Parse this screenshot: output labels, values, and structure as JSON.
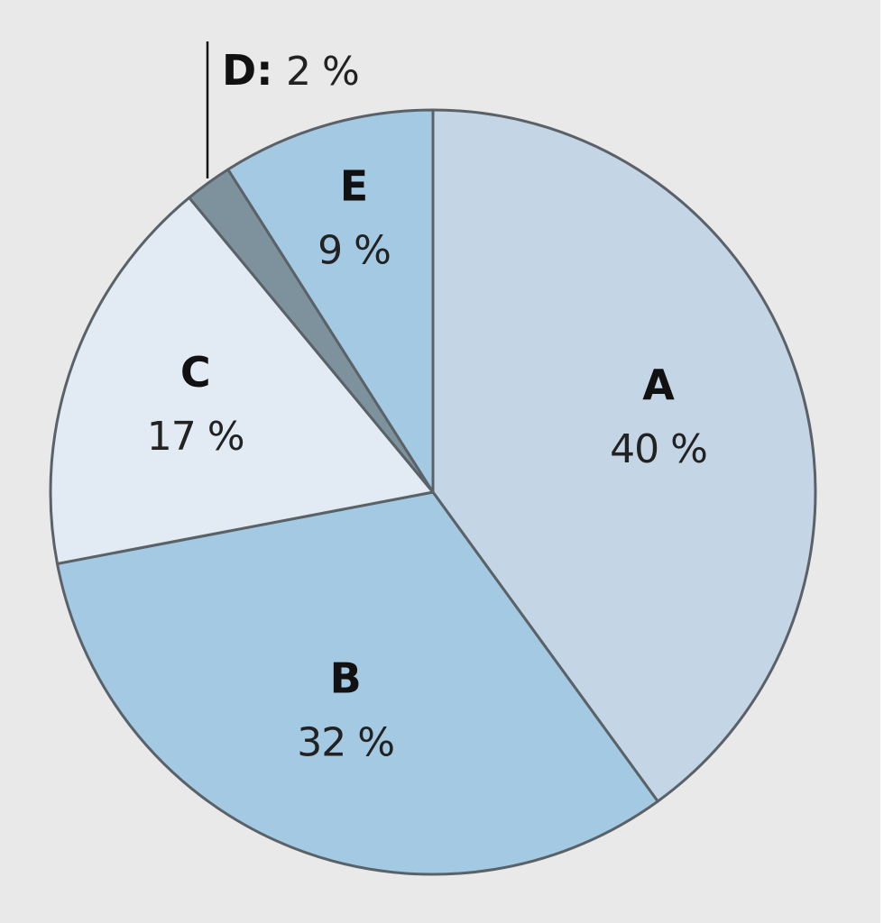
{
  "chart_data": {
    "type": "pie",
    "title": "",
    "unit": "%",
    "legend": "none",
    "slices": [
      {
        "label": "A",
        "value": 40,
        "value_label": "40 %",
        "color": "#c4d6e6"
      },
      {
        "label": "B",
        "value": 32,
        "value_label": "32 %",
        "color": "#a3c9e3"
      },
      {
        "label": "C",
        "value": 17,
        "value_label": "17 %",
        "color": "#e2eaf3"
      },
      {
        "label": "D",
        "value": 2,
        "value_label": "D: 2 %",
        "callout_label": "D:",
        "callout_value": "2 %",
        "color": "#7e929e"
      },
      {
        "label": "E",
        "value": 9,
        "value_label": "9 %",
        "color": "#a3c9e3"
      }
    ]
  }
}
